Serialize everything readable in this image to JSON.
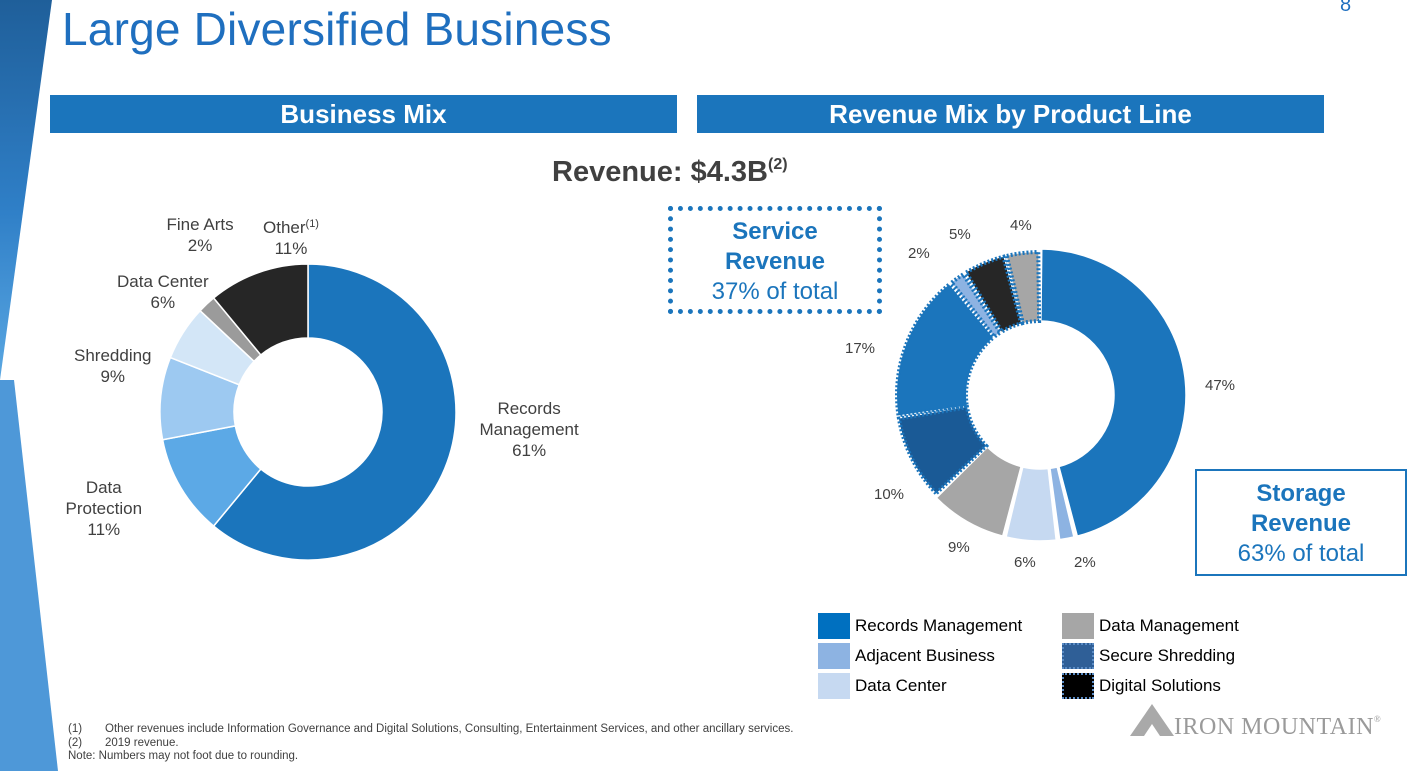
{
  "page": {
    "title": "Large Diversified Business",
    "page_number": "8"
  },
  "sections": {
    "business_mix": "Business Mix",
    "revenue_mix": "Revenue Mix by Product Line"
  },
  "revenue": {
    "label": "Revenue: $4.3B",
    "note_mark": "(2)"
  },
  "callouts": {
    "service": {
      "title_line1": "Service",
      "title_line2": "Revenue",
      "subtitle": "37% of total"
    },
    "storage": {
      "title_line1": "Storage",
      "title_line2": "Revenue",
      "subtitle": "63% of total"
    }
  },
  "legend": [
    {
      "label": "Records Management",
      "color": "#0070c0"
    },
    {
      "label": "Data Management",
      "color": "#a6a6a6"
    },
    {
      "label": "Adjacent Business",
      "color": "#8db3e2"
    },
    {
      "label": "Secure Shredding",
      "color": "#2f5f97"
    },
    {
      "label": "Data Center",
      "color": "#c6d9f1"
    },
    {
      "label": "Digital Solutions",
      "color": "#000000"
    }
  ],
  "footnotes": [
    {
      "mark": "(1)",
      "text": "Other revenues include Information Governance and Digital Solutions, Consulting, Entertainment Services, and other ancillary services."
    },
    {
      "mark": "(2)",
      "text": "2019 revenue."
    },
    {
      "mark": "",
      "text": "Note: Numbers may not foot due to rounding."
    }
  ],
  "logo": {
    "text": "IRON MOUNTAIN",
    "mark": "®"
  },
  "chart_data": [
    {
      "type": "pie",
      "title": "Business Mix",
      "donut": true,
      "slices": [
        {
          "name": "Records Management",
          "label_lines": [
            "Records",
            "Management"
          ],
          "value": 61,
          "value_label": "61%",
          "color": "#1b75bc"
        },
        {
          "name": "Data Protection",
          "label_lines": [
            "Data",
            "Protection"
          ],
          "value": 11,
          "value_label": "11%",
          "color": "#5ca9e6"
        },
        {
          "name": "Shredding",
          "label_lines": [
            "Shredding"
          ],
          "value": 9,
          "value_label": "9%",
          "color": "#9dc9f1"
        },
        {
          "name": "Data Center",
          "label_lines": [
            "Data Center"
          ],
          "value": 6,
          "value_label": "6%",
          "color": "#d3e6f7"
        },
        {
          "name": "Fine Arts",
          "label_lines": [
            "Fine Arts"
          ],
          "value": 2,
          "value_label": "2%",
          "color": "#9b9b9b"
        },
        {
          "name": "Other",
          "label_lines": [
            "Other"
          ],
          "label_note": "(1)",
          "value": 11,
          "value_label": "11%",
          "color": "#262626"
        }
      ]
    },
    {
      "type": "pie",
      "title": "Revenue Mix by Product Line",
      "donut": true,
      "slices": [
        {
          "name": "Records Management (Storage)",
          "value": 47,
          "value_label": "47%",
          "color": "#1b75bc",
          "group": "Storage"
        },
        {
          "name": "Adjacent Business (Storage)",
          "value": 2,
          "value_label": "2%",
          "color": "#8db3e2",
          "group": "Storage"
        },
        {
          "name": "Data Center (Storage)",
          "value": 6,
          "value_label": "6%",
          "color": "#c6d9f1",
          "group": "Storage"
        },
        {
          "name": "Data Management (Storage)",
          "value": 9,
          "value_label": "9%",
          "color": "#a6a6a6",
          "group": "Storage"
        },
        {
          "name": "Secure Shredding (Service)",
          "value": 10,
          "value_label": "10%",
          "color": "#1a5a96",
          "group": "Service"
        },
        {
          "name": "Records Management (Service)",
          "value": 17,
          "value_label": "17%",
          "color": "#1b75bc",
          "group": "Service"
        },
        {
          "name": "Adjacent Business (Service)",
          "value": 2,
          "value_label": "2%",
          "color": "#8db3e2",
          "group": "Service"
        },
        {
          "name": "Digital Solutions (Service)",
          "value": 5,
          "value_label": "5%",
          "color": "#262626",
          "group": "Service"
        },
        {
          "name": "Data Management (Service)",
          "value": 4,
          "value_label": "4%",
          "color": "#a6a6a6",
          "group": "Service"
        }
      ]
    }
  ]
}
